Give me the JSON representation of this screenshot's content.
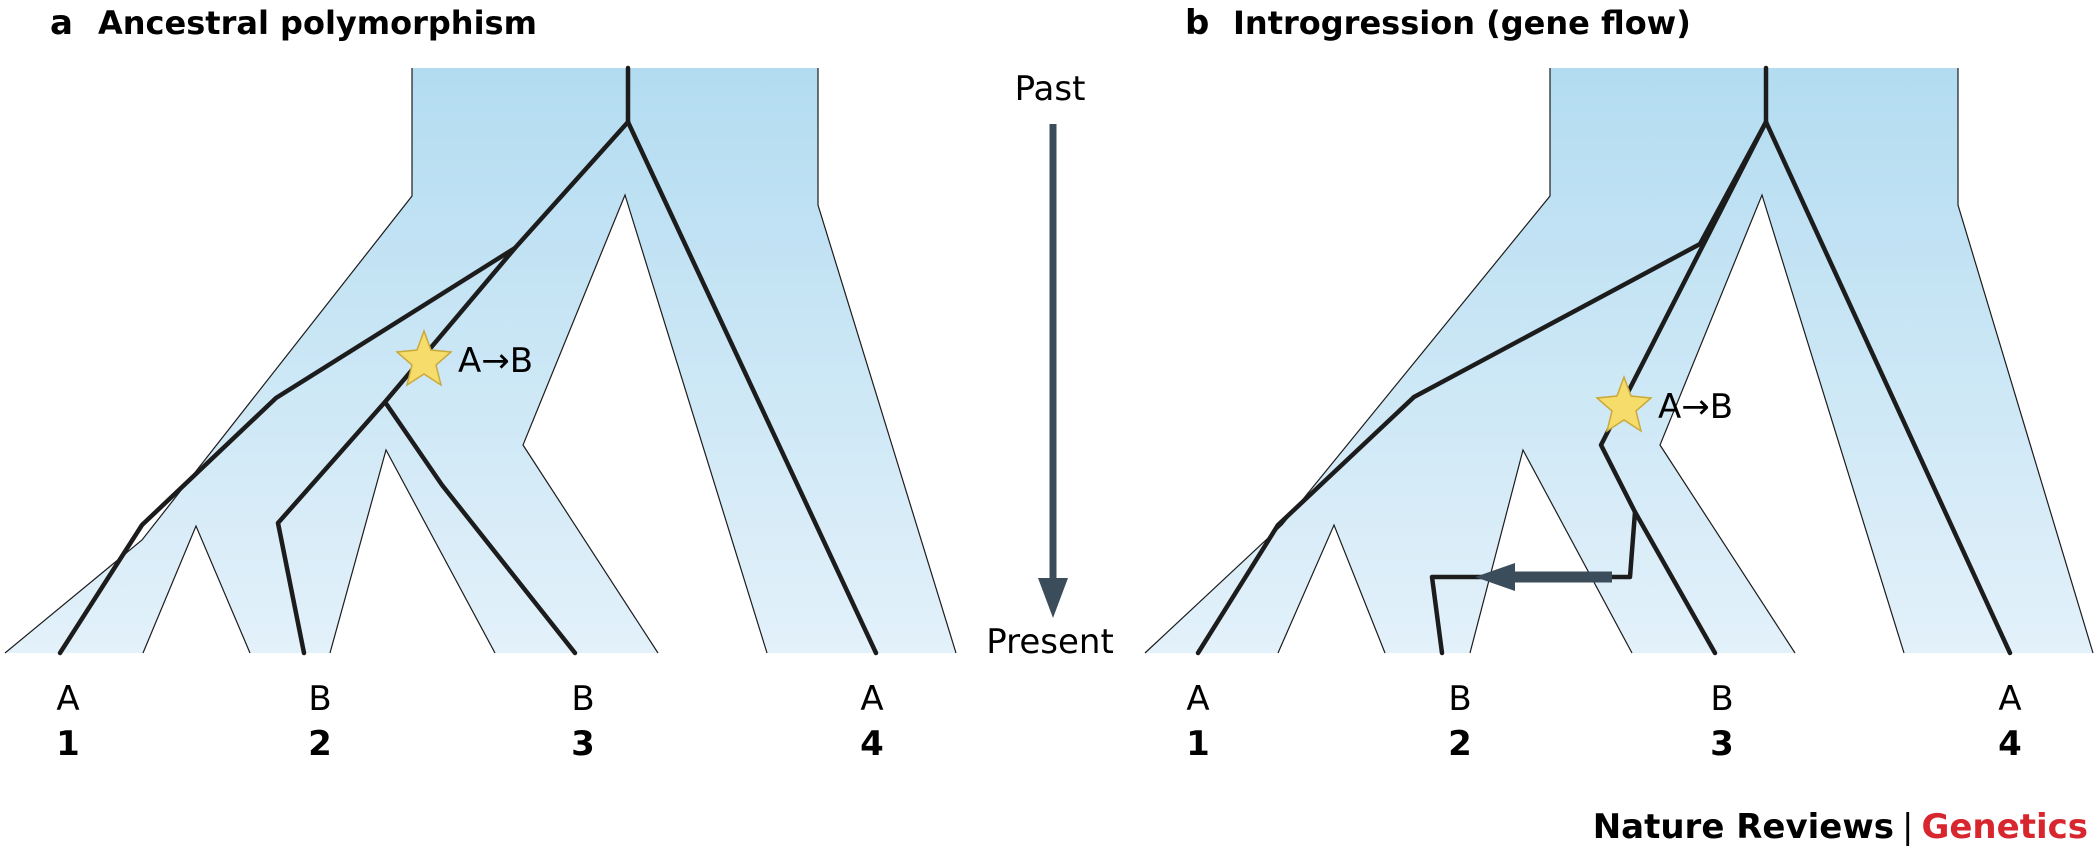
{
  "panels": [
    {
      "letter": "a",
      "title": "Ancestral polymorphism",
      "mutation_label": "A→B",
      "tips": [
        {
          "allele": "A",
          "number": "1"
        },
        {
          "allele": "B",
          "number": "2"
        },
        {
          "allele": "B",
          "number": "3"
        },
        {
          "allele": "A",
          "number": "4"
        }
      ]
    },
    {
      "letter": "b",
      "title": "Introgression (gene flow)",
      "mutation_label": "A→B",
      "tips": [
        {
          "allele": "A",
          "number": "1"
        },
        {
          "allele": "B",
          "number": "2"
        },
        {
          "allele": "B",
          "number": "3"
        },
        {
          "allele": "A",
          "number": "4"
        }
      ]
    }
  ],
  "time_axis": {
    "past_label": "Past",
    "present_label": "Present"
  },
  "footer": {
    "journal": "Nature Reviews",
    "separator": "|",
    "section": "Genetics",
    "section_color": "#d7262e"
  },
  "colors": {
    "species_tree_top": "#b3dcf1",
    "species_tree_bottom": "#e3f1fa",
    "gene_tree": "#1c1c1c",
    "arrow": "#3b4d5b",
    "star": "#f6dc6a"
  }
}
